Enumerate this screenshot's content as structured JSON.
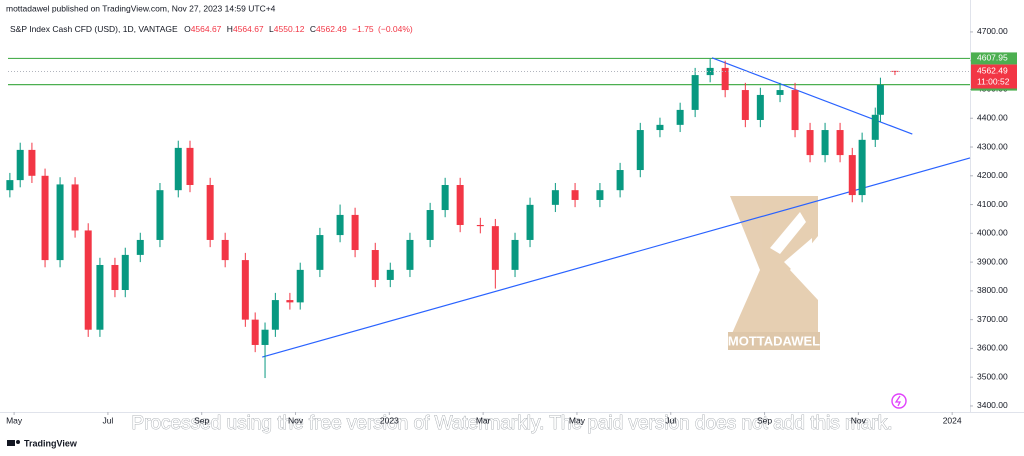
{
  "header": {
    "publisher": "mottadawel published on TradingView.com, Nov 27, 2023 14:59 UTC+4"
  },
  "footer": {
    "brand": "TradingView"
  },
  "watermark": {
    "logo_text": "MOTTADAWEL",
    "notice": "Processed using the free version of Watermarkly. The paid version does not add this mark."
  },
  "chart_data": {
    "type": "candlestick",
    "title": "S&P Index Cash CFD (USD), 1D, VANTAGE",
    "ohlc": {
      "o_label": "O",
      "open": 4564.67,
      "h_label": "H",
      "high": 4564.67,
      "l_label": "L",
      "low": 4550.12,
      "c_label": "C",
      "close": 4562.49,
      "change": {
        "value": -1.75,
        "label": "−1.75"
      },
      "change_pct": {
        "value": -0.04,
        "label": "(−0.04%)"
      }
    },
    "countdown": "11:00:52",
    "up_color": "#089981",
    "down_color": "#f23645",
    "candles": [
      [
        -0.09,
        4150,
        4210,
        4125,
        4185
      ],
      [
        0.13,
        4185,
        4315,
        4160,
        4290
      ],
      [
        0.38,
        4290,
        4315,
        4175,
        4200
      ],
      [
        0.66,
        4200,
        4225,
        3882,
        3907
      ],
      [
        0.98,
        3907,
        4195,
        3882,
        4170
      ],
      [
        1.3,
        4170,
        4195,
        3985,
        4010
      ],
      [
        1.58,
        4010,
        4035,
        3640,
        3665
      ],
      [
        1.83,
        3665,
        3915,
        3640,
        3890
      ],
      [
        2.15,
        3890,
        3915,
        3778,
        3803
      ],
      [
        2.37,
        3803,
        3950,
        3778,
        3925
      ],
      [
        2.69,
        3925,
        4002,
        3900,
        3977
      ],
      [
        3.11,
        3977,
        4175,
        3952,
        4150
      ],
      [
        3.5,
        4150,
        4322,
        4125,
        4297
      ],
      [
        3.75,
        4297,
        4322,
        4143,
        4168
      ],
      [
        4.18,
        4168,
        4193,
        3952,
        3977
      ],
      [
        4.5,
        3977,
        4002,
        3882,
        3907
      ],
      [
        4.93,
        3907,
        3932,
        3675,
        3700
      ],
      [
        5.14,
        3700,
        3725,
        3587,
        3612
      ],
      [
        5.35,
        3612,
        3690,
        3497,
        3665
      ],
      [
        5.57,
        3665,
        3793,
        3640,
        3768
      ],
      [
        5.88,
        3768,
        3793,
        3735,
        3760
      ],
      [
        6.1,
        3760,
        3898,
        3735,
        3873
      ],
      [
        6.52,
        3873,
        4019,
        3848,
        3994
      ],
      [
        6.95,
        3994,
        4100,
        3969,
        4064
      ],
      [
        7.27,
        4064,
        4089,
        3917,
        3942
      ],
      [
        7.7,
        3942,
        3967,
        3813,
        3838
      ],
      [
        8.02,
        3838,
        3898,
        3813,
        3873
      ],
      [
        8.44,
        3873,
        4002,
        3848,
        3977
      ],
      [
        8.87,
        3977,
        4106,
        3952,
        4081
      ],
      [
        9.19,
        4081,
        4193,
        4056,
        4168
      ],
      [
        9.51,
        4168,
        4193,
        4004,
        4029
      ],
      [
        9.94,
        4029,
        4054,
        4000,
        4025
      ],
      [
        10.26,
        4025,
        4050,
        3808,
        3873
      ],
      [
        10.68,
        3873,
        4002,
        3848,
        3977
      ],
      [
        11.0,
        3977,
        4124,
        3952,
        4099
      ],
      [
        11.54,
        4099,
        4175,
        4074,
        4150
      ],
      [
        11.96,
        4150,
        4175,
        4091,
        4116
      ],
      [
        12.49,
        4116,
        4175,
        4091,
        4150
      ],
      [
        12.92,
        4150,
        4245,
        4125,
        4220
      ],
      [
        13.35,
        4220,
        4384,
        4195,
        4359
      ],
      [
        13.77,
        4359,
        4402,
        4334,
        4377
      ],
      [
        14.2,
        4377,
        4454,
        4352,
        4429
      ],
      [
        14.52,
        4429,
        4575,
        4404,
        4550
      ],
      [
        14.84,
        4550,
        4607,
        4525,
        4575
      ],
      [
        15.16,
        4575,
        4600,
        4473,
        4498
      ],
      [
        15.59,
        4498,
        4523,
        4369,
        4394
      ],
      [
        15.91,
        4394,
        4506,
        4369,
        4481
      ],
      [
        16.33,
        4481,
        4523,
        4456,
        4498
      ],
      [
        16.65,
        4498,
        4523,
        4334,
        4359
      ],
      [
        16.97,
        4359,
        4384,
        4247,
        4272
      ],
      [
        17.29,
        4272,
        4384,
        4247,
        4359
      ],
      [
        17.61,
        4359,
        4384,
        4247,
        4272
      ],
      [
        17.87,
        4272,
        4297,
        4108,
        4133
      ],
      [
        18.08,
        4133,
        4350,
        4108,
        4325
      ],
      [
        18.36,
        4325,
        4437,
        4300,
        4412
      ],
      [
        18.47,
        4412,
        4541,
        4387,
        4516
      ],
      [
        18.78,
        4564.67,
        4564.67,
        4550.12,
        4562.49
      ]
    ],
    "hlines": [
      {
        "value": 4607.95,
        "label": "4607.95",
        "color": "#4caf50"
      },
      {
        "value": 4516.97,
        "label": "4516.97",
        "color": "#4caf50"
      }
    ],
    "trendlines": [
      {
        "x": [
          5.29,
          20.38
        ],
        "y": [
          3570,
          4262
        ],
        "color": "#2962ff"
      },
      {
        "x": [
          14.88,
          19.15
        ],
        "y": [
          4610,
          4345
        ],
        "color": "#2962ff"
      }
    ],
    "xlim": [
      -0.13,
      20.38
    ],
    "xticks": [
      {
        "value": 0,
        "label": "May"
      },
      {
        "value": 2,
        "label": "Jul"
      },
      {
        "value": 4,
        "label": "Sep"
      },
      {
        "value": 6,
        "label": "Nov"
      },
      {
        "value": 8,
        "label": "2023"
      },
      {
        "value": 10,
        "label": "Mar"
      },
      {
        "value": 12,
        "label": "May"
      },
      {
        "value": 14,
        "label": "Jul"
      },
      {
        "value": 16,
        "label": "Sep"
      },
      {
        "value": 18,
        "label": "Nov"
      },
      {
        "value": 20,
        "label": "2024"
      }
    ],
    "ylim": [
      3379,
      4811
    ],
    "yticks": [
      {
        "value": 3400,
        "label": "3400.00"
      },
      {
        "value": 3500,
        "label": "3500.00"
      },
      {
        "value": 3600,
        "label": "3600.00"
      },
      {
        "value": 3700,
        "label": "3700.00"
      },
      {
        "value": 3800,
        "label": "3800.00"
      },
      {
        "value": 3900,
        "label": "3900.00"
      },
      {
        "value": 4000,
        "label": "4000.00"
      },
      {
        "value": 4100,
        "label": "4100.00"
      },
      {
        "value": 4200,
        "label": "4200.00"
      },
      {
        "value": 4300,
        "label": "4300.00"
      },
      {
        "value": 4400,
        "label": "4400.00"
      },
      {
        "value": 4500,
        "label": "4500.00"
      },
      {
        "value": 4600,
        "label": "4600.00"
      },
      {
        "value": 4700,
        "label": "4700.00"
      }
    ]
  }
}
